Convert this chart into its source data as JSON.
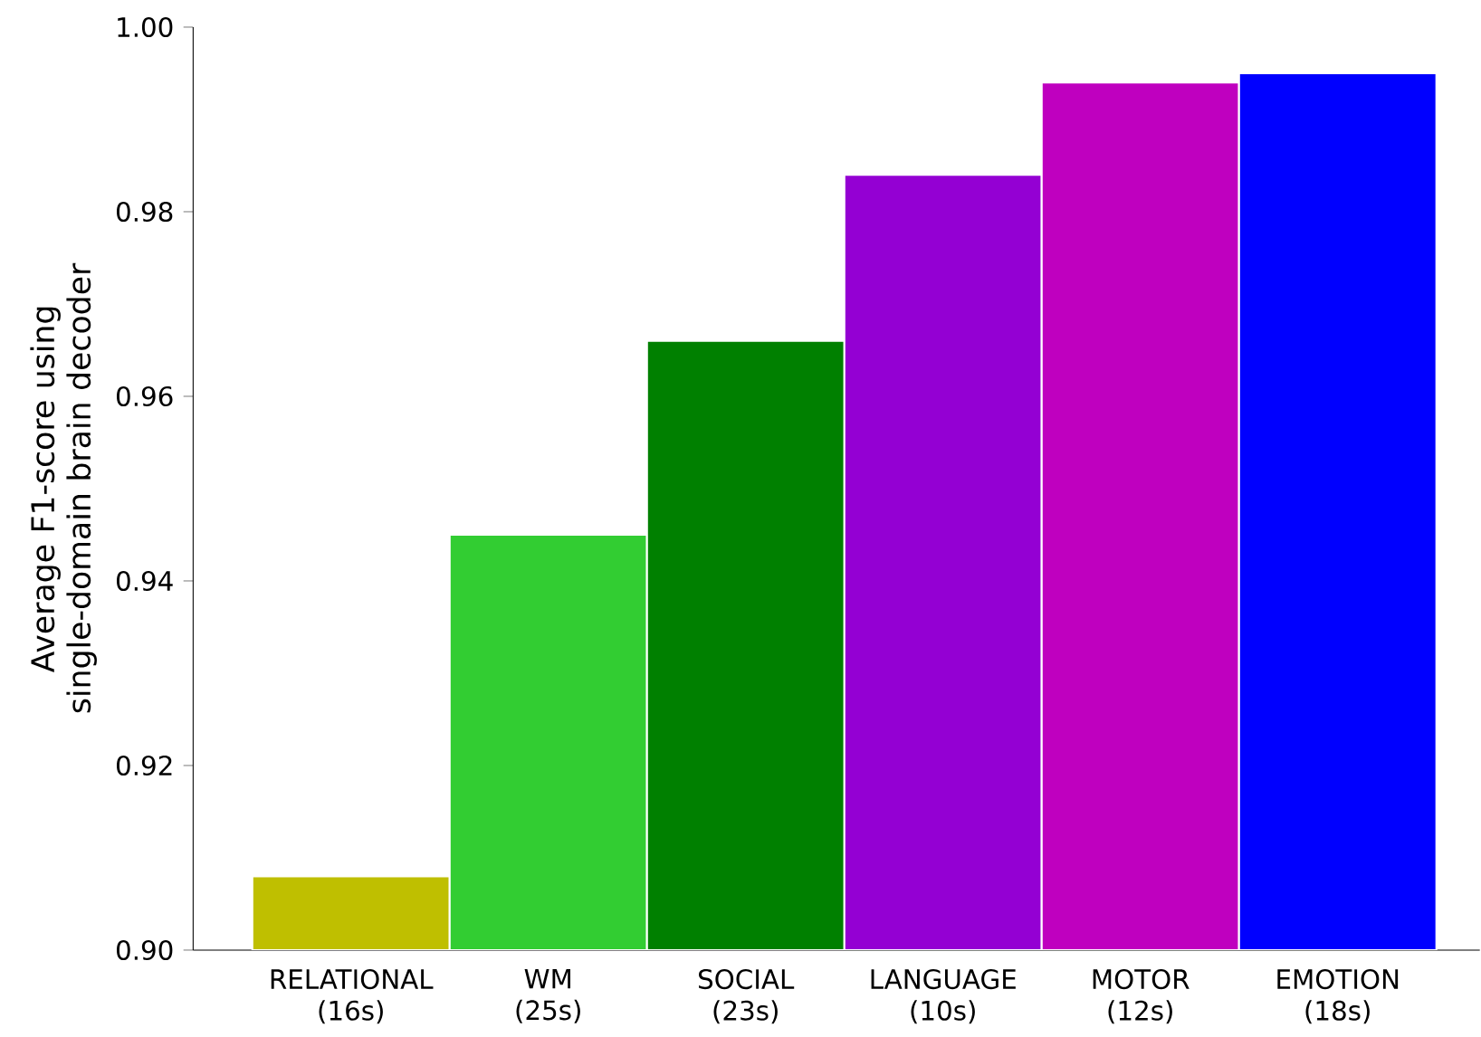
{
  "chart_data": {
    "type": "bar",
    "ylabel": "Average F1-score using single-domain brain decoder",
    "categories": [
      "RELATIONAL (16s)",
      "WM (25s)",
      "SOCIAL (23s)",
      "LANGUAGE (10s)",
      "MOTOR (12s)",
      "EMOTION (18s)"
    ],
    "values": [
      0.908,
      0.945,
      0.966,
      0.984,
      0.994,
      0.995
    ],
    "colors": [
      "#bfbf00",
      "#32cd32",
      "#008000",
      "#9400d3",
      "#bf00bf",
      "#0000ff"
    ],
    "ylim": [
      0.9,
      1.0
    ],
    "yticks": [
      {
        "value": 0.9,
        "label": "0.90"
      },
      0.92,
      0.94,
      0.96,
      0.98,
      {
        "value": 1.0,
        "label": "1.00"
      }
    ],
    "grid": false
  }
}
